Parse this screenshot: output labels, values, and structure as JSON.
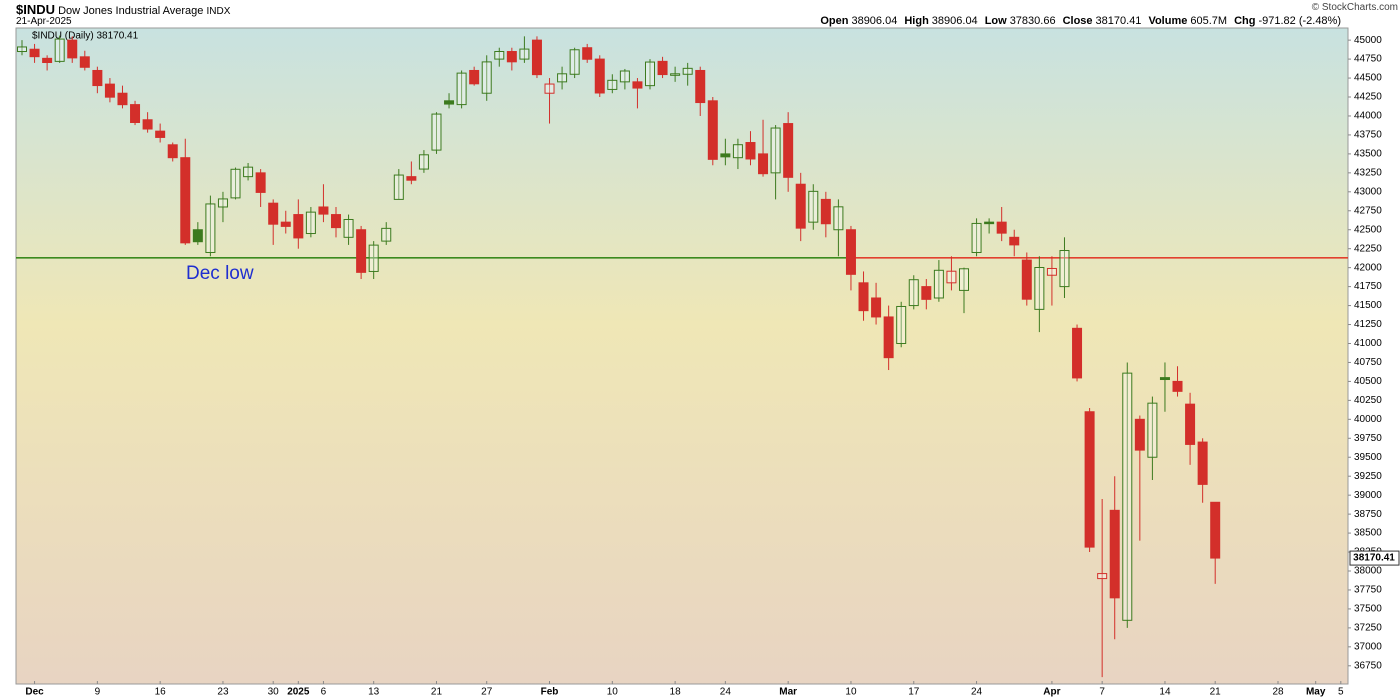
{
  "header": {
    "symbol": "$INDU",
    "name": "Dow Jones Industrial Average",
    "exchange": "INDX",
    "date": "21-Apr-2025",
    "copyright": "© StockCharts.com",
    "stats": [
      {
        "label": "Open",
        "value": 38906.04
      },
      {
        "label": "High",
        "value": 38906.04
      },
      {
        "label": "Low",
        "value": 37830.66
      },
      {
        "label": "Close",
        "value": 38170.41
      },
      {
        "label": "Volume",
        "value": "605.7M"
      },
      {
        "label": "Chg",
        "value": "-971.82 (-2.48%)"
      }
    ]
  },
  "chart_data": {
    "type": "candlestick",
    "legend_text": "$INDU (Daily) 38170.41",
    "last_price_label": "38170.41",
    "up_color": "#3c7a1e",
    "down_color": "#d32f2a",
    "background": [
      "#c8e2e0",
      "#efe7b6",
      "#e8d4c2"
    ],
    "categories": [
      null,
      "Dec",
      null,
      null,
      null,
      null,
      "9",
      null,
      null,
      null,
      null,
      "16",
      null,
      null,
      null,
      null,
      "23",
      null,
      null,
      null,
      "30",
      null,
      "2025",
      null,
      "6",
      null,
      null,
      null,
      "13",
      null,
      null,
      null,
      null,
      "21",
      null,
      null,
      null,
      "27",
      null,
      null,
      null,
      null,
      "Feb",
      null,
      null,
      null,
      null,
      "10",
      null,
      null,
      null,
      null,
      "18",
      null,
      null,
      null,
      "24",
      null,
      null,
      null,
      null,
      "Mar",
      null,
      null,
      null,
      null,
      "10",
      null,
      null,
      null,
      null,
      "17",
      null,
      null,
      null,
      null,
      "24",
      null,
      null,
      null,
      null,
      null,
      "Apr",
      null,
      null,
      null,
      "7",
      null,
      null,
      null,
      null,
      "14",
      null,
      null,
      null,
      "21",
      null,
      null,
      null,
      null,
      "28",
      null,
      null,
      "May",
      null,
      "5"
    ],
    "open": [
      44850,
      44880,
      44760,
      44720,
      45000,
      44780,
      44600,
      44420,
      44300,
      44150,
      43950,
      43800,
      43620,
      43450,
      42500,
      42200,
      42800,
      42920,
      43200,
      43250,
      42850,
      42600,
      42700,
      42450,
      42800,
      42700,
      42400,
      42500,
      41950,
      42350,
      42900,
      43200,
      43300,
      43550,
      44200,
      44150,
      44600,
      44300,
      44750,
      44850,
      44750,
      45000,
      44300,
      44450,
      44550,
      44900,
      44750,
      44350,
      44450,
      44450,
      44400,
      44720,
      44550,
      44550,
      44600,
      44200,
      43500,
      43450,
      43650,
      43500,
      43250,
      43900,
      43100,
      42600,
      42900,
      42500,
      42500,
      41800,
      41600,
      41350,
      41000,
      41500,
      41750,
      41600,
      41800,
      41700,
      42200,
      42600,
      42600,
      42400,
      42100,
      41450,
      41900,
      41750,
      41200,
      40100,
      37900,
      38800,
      37350,
      40000,
      39500,
      40550,
      40500,
      40200,
      39700,
      38906.04,
      null,
      null,
      null,
      null,
      null,
      null,
      null,
      null,
      null,
      null
    ],
    "high": [
      45000,
      44950,
      44800,
      45060,
      45050,
      44860,
      44650,
      44500,
      44400,
      44200,
      44050,
      43900,
      43650,
      43700,
      42600,
      42950,
      43000,
      43320,
      43380,
      43300,
      42900,
      42750,
      42900,
      42800,
      43100,
      42800,
      42700,
      42550,
      42350,
      42600,
      43300,
      43400,
      43550,
      44050,
      44300,
      44600,
      44650,
      44800,
      44900,
      44900,
      45050,
      45050,
      44500,
      44650,
      44900,
      44950,
      44800,
      44550,
      44620,
      44500,
      44750,
      44780,
      44650,
      44700,
      44650,
      44250,
      43700,
      43700,
      43800,
      43950,
      43880,
      44050,
      43250,
      43100,
      43000,
      42900,
      42550,
      41950,
      41800,
      41500,
      41550,
      41900,
      41850,
      42100,
      42150,
      42000,
      42650,
      42650,
      42800,
      42500,
      42200,
      42150,
      42150,
      42400,
      41250,
      40150,
      38950,
      39250,
      40750,
      40050,
      40300,
      40750,
      40700,
      40350,
      39750,
      38906.04,
      null,
      null,
      null,
      null,
      null,
      null,
      null,
      null,
      null,
      null
    ],
    "low": [
      44800,
      44700,
      44600,
      44700,
      44700,
      44600,
      44300,
      44180,
      44100,
      43880,
      43780,
      43650,
      43400,
      42300,
      42300,
      42150,
      42600,
      42900,
      43150,
      42800,
      42300,
      42450,
      42250,
      42400,
      42600,
      42400,
      42300,
      41850,
      41850,
      42300,
      42900,
      43100,
      43250,
      43500,
      44100,
      44100,
      44400,
      44200,
      44650,
      44600,
      44700,
      44500,
      43900,
      44350,
      44500,
      44700,
      44250,
      44300,
      44350,
      44100,
      44350,
      44500,
      44450,
      44400,
      44000,
      43350,
      43350,
      43300,
      43350,
      43200,
      42900,
      43000,
      42350,
      42500,
      42400,
      42150,
      41700,
      41300,
      41250,
      40650,
      40950,
      41450,
      41450,
      41550,
      41700,
      41400,
      42150,
      42450,
      42350,
      42150,
      41500,
      41150,
      41500,
      41600,
      40500,
      38250,
      36600,
      37100,
      37250,
      38400,
      39200,
      40100,
      40300,
      39400,
      38900,
      37830.66,
      null,
      null,
      null,
      null,
      null,
      null,
      null,
      null,
      null,
      null
    ],
    "close": [
      44910,
      44782,
      44705,
      45014,
      44766,
      44642,
      44401,
      44248,
      44149,
      43914,
      43828,
      43717,
      43450,
      42327,
      42342,
      42840,
      42906,
      43297,
      43325,
      42992,
      42573,
      42544,
      42392,
      42732,
      42706,
      42528,
      42635,
      41938,
      42297,
      42518,
      43221,
      43153,
      43488,
      44025,
      44157,
      44565,
      44424,
      44713,
      44850,
      44714,
      44882,
      44545,
      44421,
      44556,
      44873,
      44748,
      44303,
      44470,
      44593,
      44368,
      44711,
      44546,
      44556,
      44628,
      44177,
      43428,
      43461,
      43621,
      43433,
      43239,
      43841,
      43191,
      42521,
      43006,
      42579,
      42802,
      41912,
      41433,
      41350,
      40813,
      41488,
      41841,
      41582,
      41965,
      41953,
      41985,
      42583,
      42588,
      42455,
      42300,
      41584,
      42002,
      41989,
      42226,
      40546,
      38315,
      37966,
      37646,
      40609,
      39594,
      40213,
      40525,
      40369,
      39669,
      39142,
      38170.41,
      null,
      null,
      null,
      null,
      null,
      null,
      null,
      null,
      null,
      null
    ],
    "levels": [
      {
        "value": 42130,
        "color": "#3c8a1e",
        "start": 0,
        "end": 66,
        "label": "Dec low",
        "label_color": "#1f2fd0"
      },
      {
        "value": 42130,
        "color": "#e2402e",
        "start": 66,
        "end": 105
      }
    ],
    "ylim": [
      36510,
      45160
    ],
    "yticks": [
      36750,
      37000,
      37250,
      37500,
      37750,
      38000,
      38250,
      38500,
      38750,
      39000,
      39250,
      39500,
      39750,
      40000,
      40250,
      40500,
      40750,
      41000,
      41250,
      41500,
      41750,
      42000,
      42250,
      42500,
      42750,
      43000,
      43250,
      43500,
      43750,
      44000,
      44250,
      44500,
      44750,
      45000
    ]
  }
}
